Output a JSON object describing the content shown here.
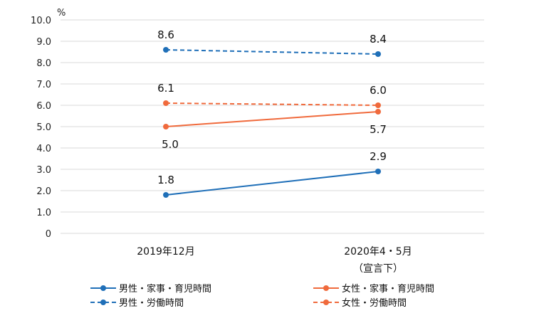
{
  "chart_data": {
    "type": "line",
    "unit_label": "%",
    "categories": [
      "2019年12月",
      "2020年4・5月"
    ],
    "category_sublabels": [
      "",
      "（宣言下）"
    ],
    "ylim": [
      0,
      10
    ],
    "yticks": [
      "0",
      "1.0",
      "2.0",
      "3.0",
      "4.0",
      "5.0",
      "6.0",
      "7.0",
      "8.0",
      "9.0",
      "10.0"
    ],
    "grid": true,
    "legend_position": "bottom",
    "series": [
      {
        "name": "男性・家事・育児時間",
        "values": [
          1.8,
          2.9
        ],
        "labels": [
          "1.8",
          "2.9"
        ],
        "color": "#1F6FB8",
        "dash": "solid"
      },
      {
        "name": "女性・家事・育児時間",
        "values": [
          5.0,
          5.7
        ],
        "labels": [
          "5.0",
          "5.7"
        ],
        "color": "#F06A3C",
        "dash": "solid"
      },
      {
        "name": "男性・労働時間",
        "values": [
          8.6,
          8.4
        ],
        "labels": [
          "8.6",
          "8.4"
        ],
        "color": "#1F6FB8",
        "dash": "dashed"
      },
      {
        "name": "女性・労働時間",
        "values": [
          6.1,
          6.0
        ],
        "labels": [
          "6.1",
          "6.0"
        ],
        "color": "#F06A3C",
        "dash": "dashed"
      }
    ]
  }
}
